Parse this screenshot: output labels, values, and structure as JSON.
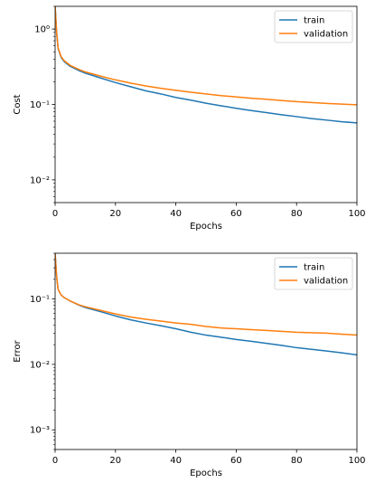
{
  "chart_data": [
    {
      "type": "line",
      "title": "",
      "xlabel": "Epochs",
      "ylabel": "Cost",
      "yscale": "log",
      "xlim": [
        0,
        100
      ],
      "ylim": [
        0.005,
        2.0
      ],
      "xticks": [
        0,
        20,
        40,
        60,
        80,
        100
      ],
      "yticks": [
        {
          "value": 1,
          "label": "10⁰"
        },
        {
          "value": 0.1,
          "label": "10⁻¹"
        },
        {
          "value": 0.01,
          "label": "10⁻²"
        }
      ],
      "legend": "top-right",
      "series": [
        {
          "name": "train",
          "color": "#1f77b4",
          "x": [
            0,
            0.5,
            1,
            2,
            3,
            5,
            8,
            10,
            15,
            20,
            25,
            30,
            35,
            40,
            45,
            50,
            55,
            60,
            65,
            70,
            75,
            80,
            85,
            90,
            95,
            100
          ],
          "y": [
            2.0,
            0.9,
            0.55,
            0.42,
            0.37,
            0.32,
            0.28,
            0.26,
            0.225,
            0.195,
            0.172,
            0.152,
            0.138,
            0.124,
            0.114,
            0.104,
            0.096,
            0.089,
            0.083,
            0.078,
            0.073,
            0.069,
            0.065,
            0.062,
            0.059,
            0.057
          ]
        },
        {
          "name": "validation",
          "color": "#ff7f0e",
          "x": [
            0,
            0.5,
            1,
            2,
            3,
            5,
            8,
            10,
            15,
            20,
            25,
            30,
            35,
            40,
            45,
            50,
            55,
            60,
            65,
            70,
            75,
            80,
            85,
            90,
            95,
            100
          ],
          "y": [
            2.0,
            0.92,
            0.56,
            0.43,
            0.38,
            0.33,
            0.29,
            0.27,
            0.238,
            0.212,
            0.192,
            0.176,
            0.164,
            0.154,
            0.145,
            0.138,
            0.131,
            0.126,
            0.121,
            0.117,
            0.113,
            0.109,
            0.106,
            0.103,
            0.101,
            0.099
          ]
        }
      ]
    },
    {
      "type": "line",
      "title": "",
      "xlabel": "Epochs",
      "ylabel": "Error",
      "yscale": "log",
      "xlim": [
        0,
        100
      ],
      "ylim": [
        0.0005,
        0.5
      ],
      "xticks": [
        0,
        20,
        40,
        60,
        80,
        100
      ],
      "yticks": [
        {
          "value": 0.1,
          "label": "10⁻¹"
        },
        {
          "value": 0.01,
          "label": "10⁻²"
        },
        {
          "value": 0.001,
          "label": "10⁻³"
        }
      ],
      "legend": "top-right",
      "series": [
        {
          "name": "train",
          "color": "#1f77b4",
          "x": [
            0,
            0.5,
            1,
            2,
            3,
            5,
            8,
            10,
            15,
            20,
            25,
            30,
            35,
            40,
            45,
            50,
            55,
            60,
            65,
            70,
            75,
            80,
            85,
            90,
            95,
            100
          ],
          "y": [
            0.5,
            0.22,
            0.14,
            0.115,
            0.105,
            0.093,
            0.08,
            0.074,
            0.064,
            0.055,
            0.048,
            0.043,
            0.039,
            0.035,
            0.031,
            0.028,
            0.026,
            0.024,
            0.0225,
            0.021,
            0.0195,
            0.018,
            0.017,
            0.016,
            0.015,
            0.014
          ]
        },
        {
          "name": "validation",
          "color": "#ff7f0e",
          "x": [
            0,
            0.5,
            1,
            2,
            3,
            5,
            8,
            10,
            15,
            20,
            25,
            30,
            35,
            40,
            45,
            50,
            55,
            60,
            65,
            70,
            75,
            80,
            85,
            90,
            95,
            100
          ],
          "y": [
            0.5,
            0.22,
            0.14,
            0.115,
            0.105,
            0.093,
            0.081,
            0.076,
            0.067,
            0.059,
            0.053,
            0.049,
            0.046,
            0.043,
            0.041,
            0.038,
            0.036,
            0.035,
            0.034,
            0.033,
            0.032,
            0.031,
            0.0305,
            0.03,
            0.029,
            0.028
          ]
        }
      ]
    }
  ]
}
